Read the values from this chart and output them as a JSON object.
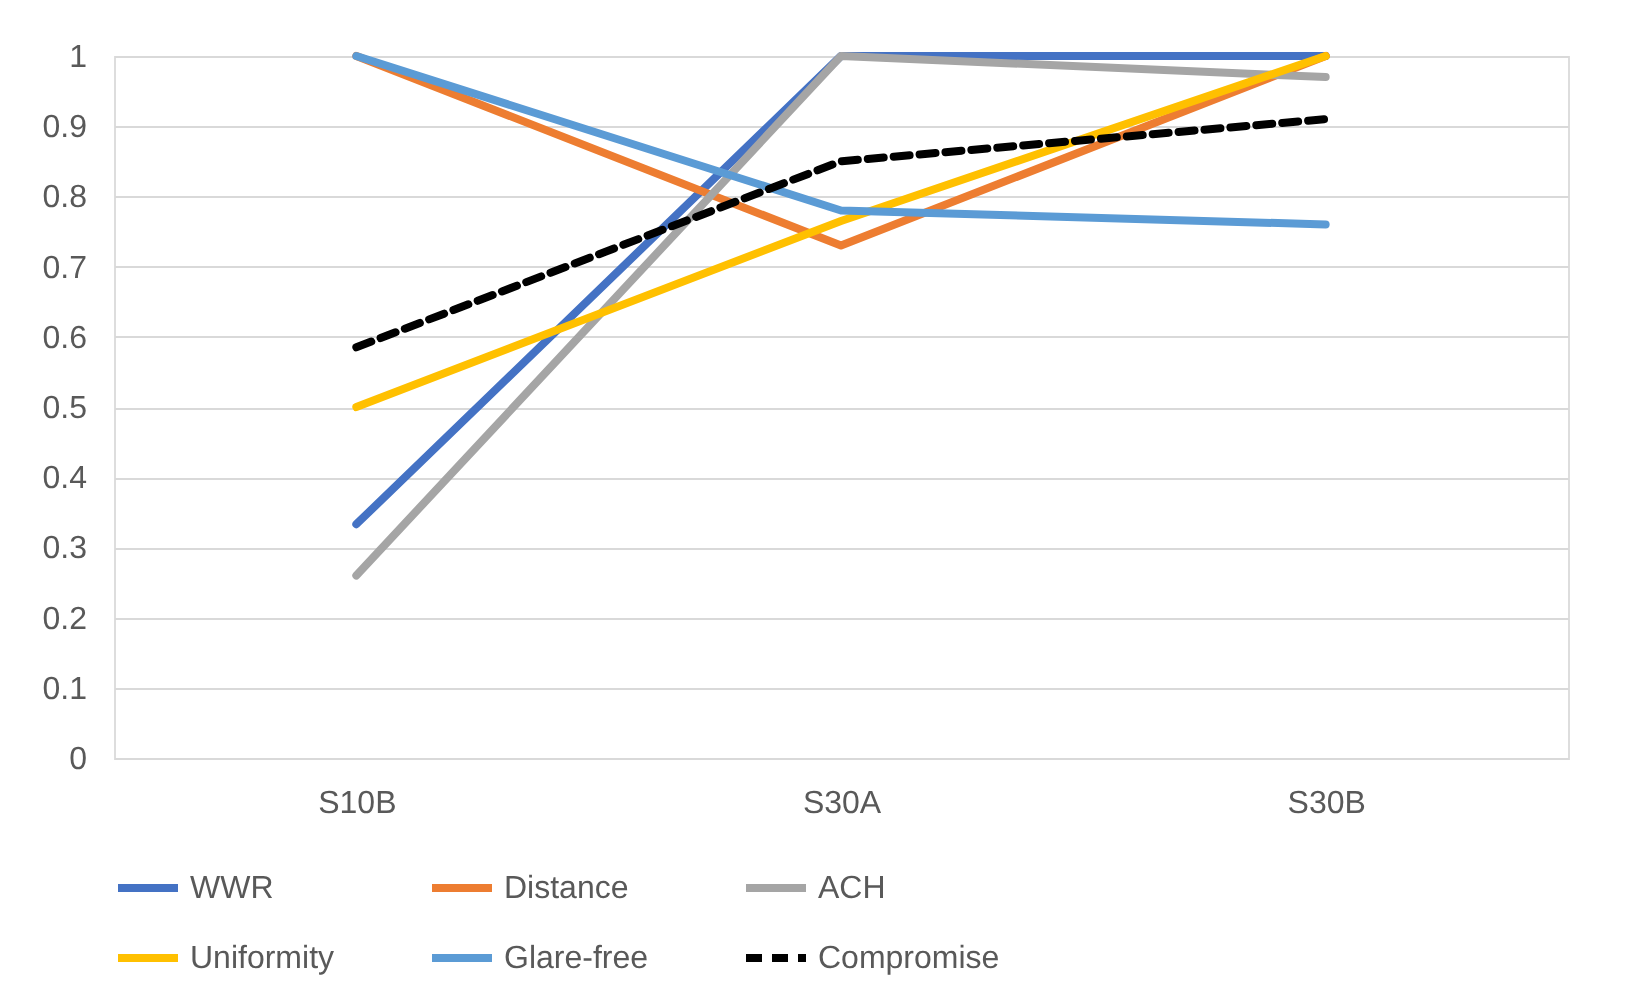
{
  "chart_data": {
    "type": "line",
    "categories": [
      "S10B",
      "S30A",
      "S30B"
    ],
    "series": [
      {
        "name": "WWR",
        "color": "#4472c4",
        "values": [
          0.333,
          1,
          1
        ],
        "line_style": "solid"
      },
      {
        "name": "Distance",
        "color": "#ed7d31",
        "values": [
          1,
          0.73,
          1
        ],
        "line_style": "solid"
      },
      {
        "name": "ACH",
        "color": "#a5a5a5",
        "values": [
          0.26,
          1,
          0.97
        ],
        "line_style": "solid"
      },
      {
        "name": "Uniformity",
        "color": "#ffc000",
        "values": [
          0.5,
          0.765,
          1
        ],
        "line_style": "solid"
      },
      {
        "name": "Glare-free",
        "color": "#5b9bd5",
        "values": [
          1,
          0.78,
          0.76
        ],
        "line_style": "solid"
      },
      {
        "name": "Compromise",
        "color": "#000000",
        "values": [
          0.585,
          0.85,
          0.91
        ],
        "line_style": "dashed"
      }
    ],
    "ylim": [
      0,
      1
    ],
    "yticks": [
      0,
      0.1,
      0.2,
      0.3,
      0.4,
      0.5,
      0.6,
      0.7,
      0.8,
      0.9,
      1
    ],
    "grid": "y",
    "legend": "bottom",
    "marker": "none"
  }
}
